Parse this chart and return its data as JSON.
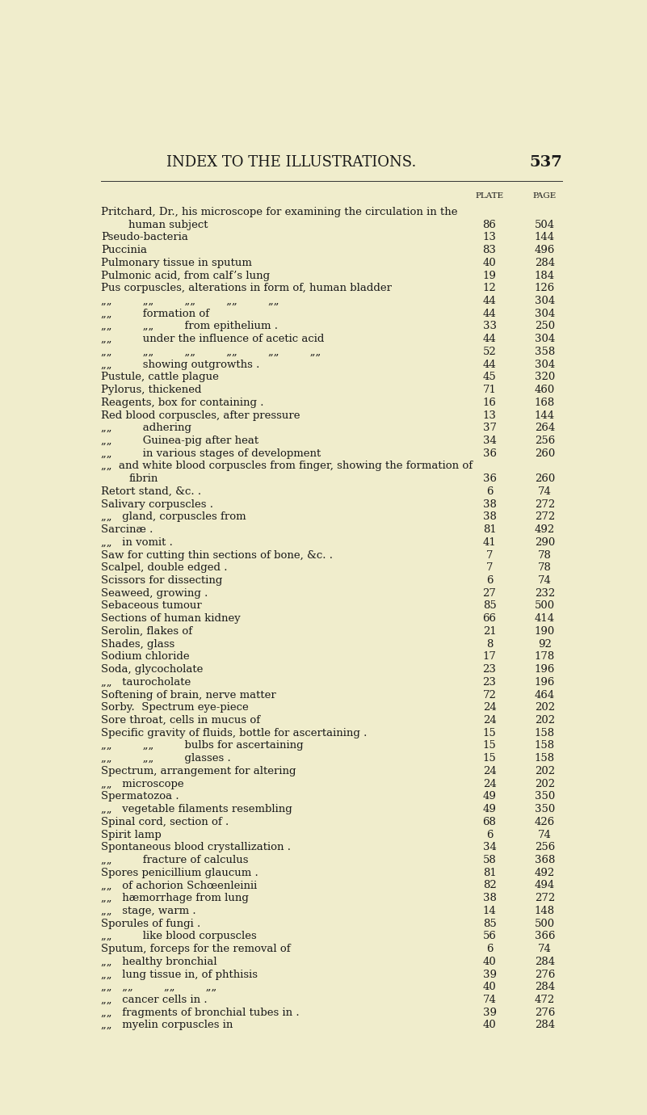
{
  "bg_color": "#f0edcc",
  "header_title": "INDEX TO THE ILLUSTRATIONS.",
  "header_page_num": "537",
  "col_plate_label": "PLATE",
  "col_page_label": "PAGE",
  "title_fontsize": 13,
  "body_fontsize": 9.5,
  "entries": [
    {
      "text": "Pritchard, Dr., his microscope for examining the circulation in the",
      "indent": 0,
      "plate": "",
      "page": ""
    },
    {
      "text": "human subject",
      "indent": 1,
      "plate": "86",
      "page": "504"
    },
    {
      "text": "Pseudo-bacteria",
      "indent": 0,
      "plate": "13",
      "page": "144"
    },
    {
      "text": "Puccinia",
      "indent": 0,
      "plate": "83",
      "page": "496"
    },
    {
      "text": "Pulmonary tissue in sputum",
      "indent": 0,
      "plate": "40",
      "page": "284"
    },
    {
      "text": "Pulmonic acid, from calf’s lung",
      "indent": 0,
      "plate": "19",
      "page": "184"
    },
    {
      "text": "Pus corpuscles, alterations in form of, human bladder",
      "indent": 0,
      "plate": "12",
      "page": "126"
    },
    {
      "text": "„„         „„         „„         „„         „„",
      "indent": 0,
      "plate": "44",
      "page": "304"
    },
    {
      "text": "„„         formation of",
      "indent": 0,
      "plate": "44",
      "page": "304"
    },
    {
      "text": "„„         „„         from epithelium .",
      "indent": 0,
      "plate": "33",
      "page": "250"
    },
    {
      "text": "„„         under the influence of acetic acid",
      "indent": 0,
      "plate": "44",
      "page": "304"
    },
    {
      "text": "„„         „„         „„         „„         „„         „„",
      "indent": 0,
      "plate": "52",
      "page": "358"
    },
    {
      "text": "„„         showing outgrowths .",
      "indent": 0,
      "plate": "44",
      "page": "304"
    },
    {
      "text": "Pustule, cattle plague",
      "indent": 0,
      "plate": "45",
      "page": "320"
    },
    {
      "text": "Pylorus, thickened",
      "indent": 0,
      "plate": "71",
      "page": "460"
    },
    {
      "text": "Reagents, box for containing .",
      "indent": 0,
      "plate": "16",
      "page": "168"
    },
    {
      "text": "Red blood corpuscles, after pressure",
      "indent": 0,
      "plate": "13",
      "page": "144"
    },
    {
      "text": "„„         adhering",
      "indent": 0,
      "plate": "37",
      "page": "264"
    },
    {
      "text": "„„         Guinea-pig after heat",
      "indent": 0,
      "plate": "34",
      "page": "256"
    },
    {
      "text": "„„         in various stages of development",
      "indent": 0,
      "plate": "36",
      "page": "260"
    },
    {
      "text": "„„  and white blood corpuscles from finger, showing the formation of",
      "indent": 0,
      "plate": "",
      "page": ""
    },
    {
      "text": "fibrin",
      "indent": 1,
      "plate": "36",
      "page": "260"
    },
    {
      "text": "Retort stand, &c. .",
      "indent": 0,
      "plate": "6",
      "page": "74"
    },
    {
      "text": "Salivary corpuscles .",
      "indent": 0,
      "plate": "38",
      "page": "272"
    },
    {
      "text": "„„   gland, corpuscles from",
      "indent": 0,
      "plate": "38",
      "page": "272"
    },
    {
      "text": "Sarcinæ .",
      "indent": 0,
      "plate": "81",
      "page": "492"
    },
    {
      "text": "„„   in vomit .",
      "indent": 0,
      "plate": "41",
      "page": "290"
    },
    {
      "text": "Saw for cutting thin sections of bone, &c. .",
      "indent": 0,
      "plate": "7",
      "page": "78"
    },
    {
      "text": "Scalpel, double edged .",
      "indent": 0,
      "plate": "7",
      "page": "78"
    },
    {
      "text": "Scissors for dissecting",
      "indent": 0,
      "plate": "6",
      "page": "74"
    },
    {
      "text": "Seaweed, growing .",
      "indent": 0,
      "plate": "27",
      "page": "232"
    },
    {
      "text": "Sebaceous tumour",
      "indent": 0,
      "plate": "85",
      "page": "500"
    },
    {
      "text": "Sections of human kidney",
      "indent": 0,
      "plate": "66",
      "page": "414"
    },
    {
      "text": "Serolin, flakes of",
      "indent": 0,
      "plate": "21",
      "page": "190"
    },
    {
      "text": "Shades, glass",
      "indent": 0,
      "plate": "8",
      "page": "92"
    },
    {
      "text": "Sodium chloride",
      "indent": 0,
      "plate": "17",
      "page": "178"
    },
    {
      "text": "Soda, glycocholate",
      "indent": 0,
      "plate": "23",
      "page": "196"
    },
    {
      "text": "„„   taurocholate",
      "indent": 0,
      "plate": "23",
      "page": "196"
    },
    {
      "text": "Softening of brain, nerve matter",
      "indent": 0,
      "plate": "72",
      "page": "464"
    },
    {
      "text": "Sorby.  Spectrum eye-piece",
      "indent": 0,
      "plate": "24",
      "page": "202"
    },
    {
      "text": "Sore throat, cells in mucus of",
      "indent": 0,
      "plate": "24",
      "page": "202"
    },
    {
      "text": "Specific gravity of fluids, bottle for ascertaining .",
      "indent": 0,
      "plate": "15",
      "page": "158"
    },
    {
      "text": "„„         „„         bulbs for ascertaining",
      "indent": 0,
      "plate": "15",
      "page": "158"
    },
    {
      "text": "„„         „„         glasses .",
      "indent": 0,
      "plate": "15",
      "page": "158"
    },
    {
      "text": "Spectrum, arrangement for altering",
      "indent": 0,
      "plate": "24",
      "page": "202"
    },
    {
      "text": "„„   microscope",
      "indent": 0,
      "plate": "24",
      "page": "202"
    },
    {
      "text": "Spermatozoa .",
      "indent": 0,
      "plate": "49",
      "page": "350"
    },
    {
      "text": "„„   vegetable filaments resembling",
      "indent": 0,
      "plate": "49",
      "page": "350"
    },
    {
      "text": "Spinal cord, section of .",
      "indent": 0,
      "plate": "68",
      "page": "426"
    },
    {
      "text": "Spirit lamp",
      "indent": 0,
      "plate": "6",
      "page": "74"
    },
    {
      "text": "Spontaneous blood crystallization .",
      "indent": 0,
      "plate": "34",
      "page": "256"
    },
    {
      "text": "„„         fracture of calculus",
      "indent": 0,
      "plate": "58",
      "page": "368"
    },
    {
      "text": "Spores penicillium glaucum .",
      "indent": 0,
      "plate": "81",
      "page": "492"
    },
    {
      "text": "„„   of achorion Schœenleinii",
      "indent": 0,
      "plate": "82",
      "page": "494"
    },
    {
      "text": "„„   hæmorrhage from lung",
      "indent": 0,
      "plate": "38",
      "page": "272"
    },
    {
      "text": "„„   stage, warm .",
      "indent": 0,
      "plate": "14",
      "page": "148"
    },
    {
      "text": "Sporules of fungi .",
      "indent": 0,
      "plate": "85",
      "page": "500"
    },
    {
      "text": "„„         like blood corpuscles",
      "indent": 0,
      "plate": "56",
      "page": "366"
    },
    {
      "text": "Sputum, forceps for the removal of",
      "indent": 0,
      "plate": "6",
      "page": "74"
    },
    {
      "text": "„„   healthy bronchial",
      "indent": 0,
      "plate": "40",
      "page": "284"
    },
    {
      "text": "„„   lung tissue in, of phthisis",
      "indent": 0,
      "plate": "39",
      "page": "276"
    },
    {
      "text": "„„   „„         „„         „„",
      "indent": 0,
      "plate": "40",
      "page": "284"
    },
    {
      "text": "„„   cancer cells in .",
      "indent": 0,
      "plate": "74",
      "page": "472"
    },
    {
      "text": "„„   fragments of bronchial tubes in .",
      "indent": 0,
      "plate": "39",
      "page": "276"
    },
    {
      "text": "„„   myelin corpuscles in",
      "indent": 0,
      "plate": "40",
      "page": "284"
    }
  ]
}
